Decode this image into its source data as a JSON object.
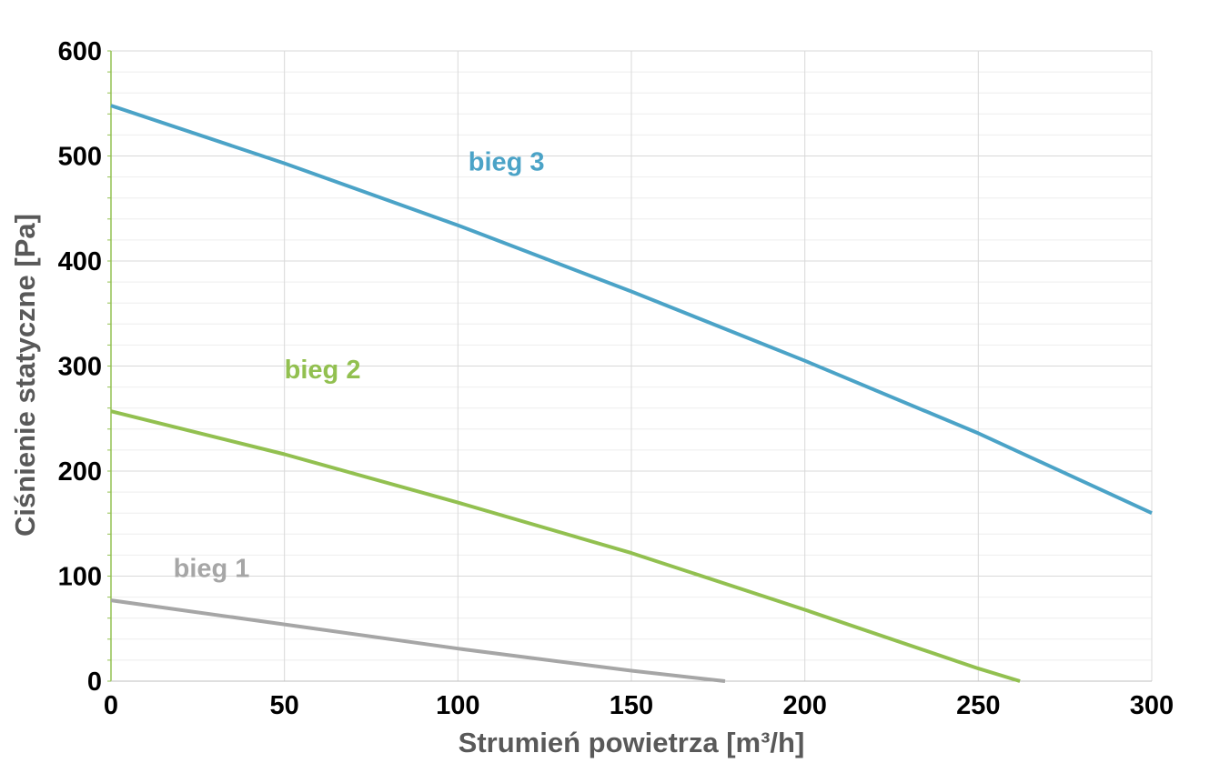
{
  "chart_data": {
    "type": "line",
    "title": "",
    "xlabel": "Strumień powietrza [m³/h]",
    "ylabel": "Ciśnienie statyczne [Pa]",
    "xlim": [
      0,
      300
    ],
    "ylim": [
      0,
      600
    ],
    "x_ticks": [
      0,
      50,
      100,
      150,
      200,
      250,
      300
    ],
    "y_ticks": [
      0,
      100,
      200,
      300,
      400,
      500,
      600
    ],
    "grid": true,
    "legend": "none (inline labels)",
    "series": [
      {
        "name": "bieg 1",
        "color": "#a6a6a6",
        "points": [
          [
            0,
            77
          ],
          [
            50,
            54
          ],
          [
            100,
            31
          ],
          [
            150,
            10
          ],
          [
            177,
            0
          ]
        ]
      },
      {
        "name": "bieg 2",
        "color": "#92c050",
        "points": [
          [
            0,
            257
          ],
          [
            50,
            216
          ],
          [
            100,
            170
          ],
          [
            150,
            122
          ],
          [
            200,
            68
          ],
          [
            250,
            12
          ],
          [
            262,
            0
          ]
        ]
      },
      {
        "name": "bieg 3",
        "color": "#4ba3c7",
        "points": [
          [
            0,
            548
          ],
          [
            50,
            493
          ],
          [
            100,
            434
          ],
          [
            150,
            371
          ],
          [
            200,
            305
          ],
          [
            250,
            236
          ],
          [
            300,
            160
          ]
        ]
      }
    ]
  }
}
